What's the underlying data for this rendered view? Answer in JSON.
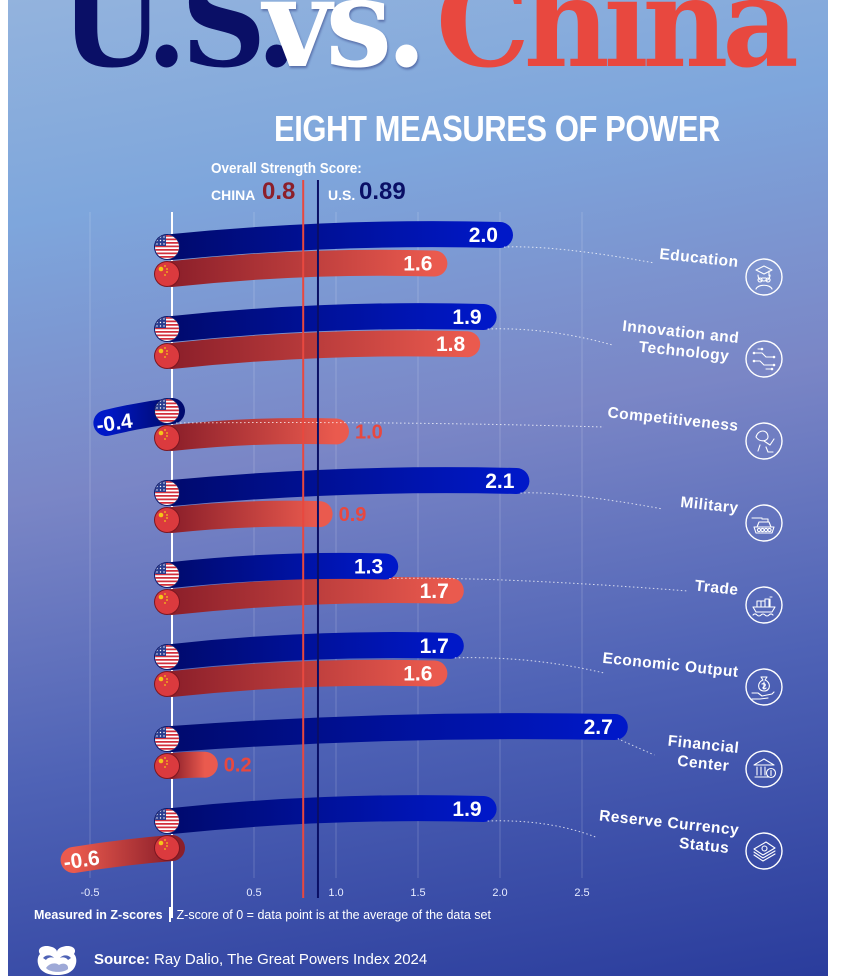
{
  "header": {
    "title_us": "U.S.",
    "title_vs": "vs.",
    "title_china": "China",
    "subtitle": "EIGHT MEASURES OF POWER"
  },
  "overall": {
    "heading": "Overall Strength Score:",
    "china_label": "CHINA",
    "china_value": "0.8",
    "us_label": "U.S.",
    "us_value": "0.89"
  },
  "colors": {
    "us_dark": "#000a6e",
    "us_light": "#0018c8",
    "china_dark": "#8c1f2a",
    "china_light": "#ea5a4e",
    "title_navy": "#0a0f66",
    "title_red": "#e8483f"
  },
  "footer": {
    "measured_label": "Measured in Z-scores",
    "zscore_note": "Z-score of 0 = data point is at the average of the data set",
    "source_label": "Source:",
    "source_text": "Ray Dalio, The Great Powers Index 2024"
  },
  "chart_data": {
    "type": "bar",
    "orientation": "horizontal",
    "title": "U.S. vs. China: Eight Measures of Power",
    "xlabel": "Measured in Z-scores",
    "xlim": [
      -0.6,
      2.8
    ],
    "x_ticks": [
      "-0.5",
      "0.5",
      "1.0",
      "1.5",
      "2.0",
      "2.5"
    ],
    "x_tick_values": [
      -0.5,
      0.5,
      1.0,
      1.5,
      2.0,
      2.5
    ],
    "grid": true,
    "reference_lines": [
      {
        "name": "China overall strength score",
        "value": 0.8
      },
      {
        "name": "U.S. overall strength score",
        "value": 0.89
      }
    ],
    "categories": [
      "Education",
      "Innovation and Technology",
      "Competitiveness",
      "Military",
      "Trade",
      "Economic Output",
      "Financial Center",
      "Reserve Currency Status"
    ],
    "category_lines": [
      [
        "Education"
      ],
      [
        "Innovation and",
        "Technology"
      ],
      [
        "Competitiveness"
      ],
      [
        "Military"
      ],
      [
        "Trade"
      ],
      [
        "Economic Output"
      ],
      [
        "Financial",
        "Center"
      ],
      [
        "Reserve Currency",
        "Status"
      ]
    ],
    "category_icons": [
      "graduate-icon",
      "circuit-icon",
      "handshake-icon",
      "tank-icon",
      "cargo-ship-icon",
      "money-bag-hand-icon",
      "bank-icon",
      "cash-stack-icon"
    ],
    "series": [
      {
        "name": "U.S.",
        "flag": "us-flag-icon",
        "values": [
          2.0,
          1.9,
          -0.4,
          2.1,
          1.3,
          1.7,
          2.7,
          1.9
        ]
      },
      {
        "name": "China",
        "flag": "china-flag-icon",
        "values": [
          1.6,
          1.8,
          1.0,
          0.9,
          1.7,
          1.6,
          0.2,
          -0.6
        ]
      }
    ],
    "value_labels": {
      "U.S.": [
        "2.0",
        "1.9",
        "-0.4",
        "2.1",
        "1.3",
        "1.7",
        "2.7",
        "1.9"
      ],
      "China": [
        "1.6",
        "1.8",
        "1.0",
        "0.9",
        "1.7",
        "1.6",
        "0.2",
        "-0.6"
      ]
    }
  }
}
